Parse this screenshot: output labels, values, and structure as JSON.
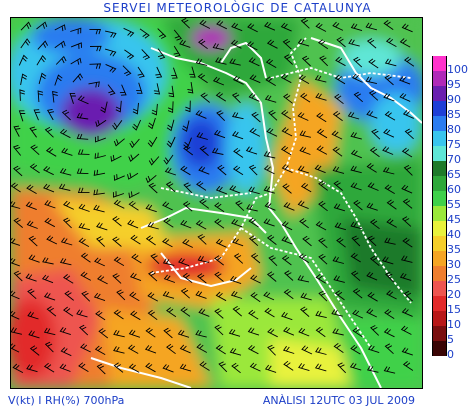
{
  "header": {
    "title": "SERVEI METEOROLÒGIC DE CATALUNYA"
  },
  "footer": {
    "left": "V(kt) I RH(%) 700hPa",
    "right": "ANÀLISI 12UTC 03 JUL 2009"
  },
  "legend": {
    "items": [
      {
        "label": "100",
        "color": "#ff33cc"
      },
      {
        "label": "95",
        "color": "#b02ab8"
      },
      {
        "label": "90",
        "color": "#6a1fb0"
      },
      {
        "label": "85",
        "color": "#1f3fd6"
      },
      {
        "label": "80",
        "color": "#2b7cf0"
      },
      {
        "label": "75",
        "color": "#39c5ee"
      },
      {
        "label": "70",
        "color": "#5ee6d6"
      },
      {
        "label": "65",
        "color": "#1e7a2a"
      },
      {
        "label": "60",
        "color": "#2ea83a"
      },
      {
        "label": "55",
        "color": "#3fd14a"
      },
      {
        "label": "45",
        "color": "#9be83a"
      },
      {
        "label": "40",
        "color": "#e8f23c"
      },
      {
        "label": "35",
        "color": "#f5cf2a"
      },
      {
        "label": "30",
        "color": "#f5a524"
      },
      {
        "label": "25",
        "color": "#ef7e2f"
      },
      {
        "label": "20",
        "color": "#ee5550"
      },
      {
        "label": "15",
        "color": "#e22a2a"
      },
      {
        "label": "10",
        "color": "#b81818"
      },
      {
        "label": "5",
        "color": "#7a0f0f"
      },
      {
        "label": "0",
        "color": "#3a0505"
      }
    ]
  }
}
